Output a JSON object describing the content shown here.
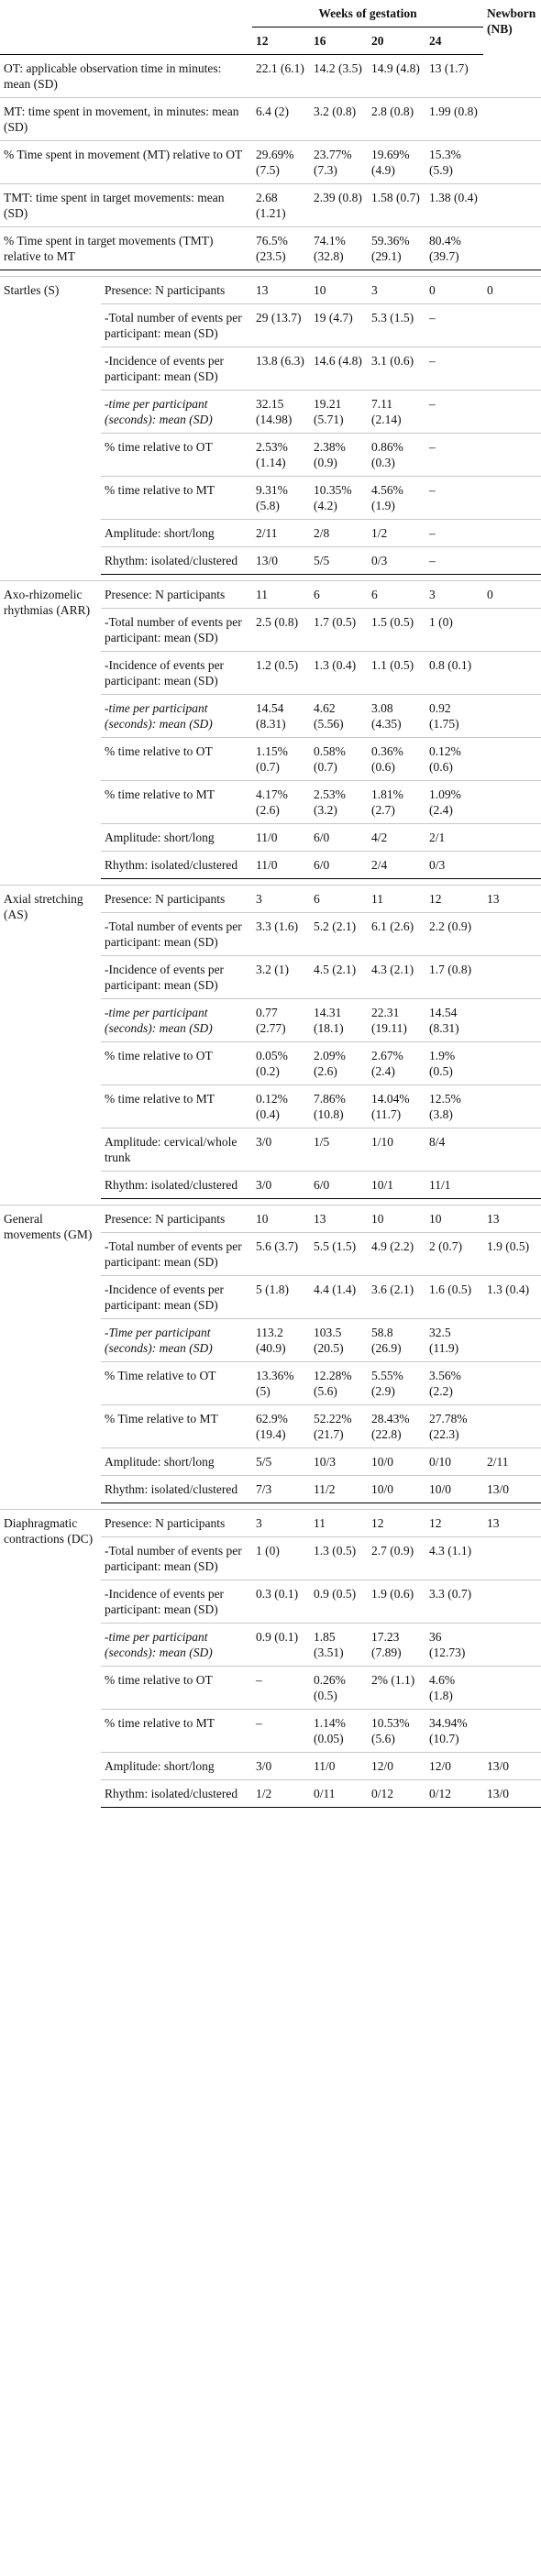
{
  "header": {
    "weeks_label": "Weeks of gestation",
    "newborn_label": "Newborn (NB)",
    "weeks": [
      "12",
      "16",
      "20",
      "24"
    ]
  },
  "summary_rows": [
    {
      "label": "OT: applicable observation time in minutes: mean (SD)",
      "values": [
        "22.1 (6.1)",
        "14.2 (3.5)",
        "14.9 (4.8)",
        "13 (1.7)"
      ],
      "nb": ""
    },
    {
      "label": "MT: time spent in movement, in minutes: mean (SD)",
      "values": [
        "6.4 (2)",
        "3.2 (0.8)",
        "2.8 (0.8)",
        "1.99 (0.8)"
      ],
      "nb": ""
    },
    {
      "label": "% Time spent in movement (MT) relative to OT",
      "values": [
        "29.69% (7.5)",
        "23.77% (7.3)",
        "19.69% (4.9)",
        "15.3% (5.9)"
      ],
      "nb": ""
    },
    {
      "label": "TMT: time spent in target movements: mean (SD)",
      "values": [
        "2.68 (1.21)",
        "2.39 (0.8)",
        "1.58 (0.7)",
        "1.38 (0.4)"
      ],
      "nb": ""
    },
    {
      "label": "% Time spent in target movements (TMT) relative to MT",
      "values": [
        "76.5% (23.5)",
        "74.1% (32.8)",
        "59.36% (29.1)",
        "80.4% (39.7)"
      ],
      "nb": ""
    }
  ],
  "groups": [
    {
      "name": "Startles (S)",
      "rows": [
        {
          "label": "Presence: N participants",
          "italic": false,
          "values": [
            "13",
            "10",
            "3",
            "0"
          ],
          "nb": "0"
        },
        {
          "label": "-Total number of events per participant: mean (SD)",
          "italic": false,
          "values": [
            "29 (13.7)",
            "19 (4.7)",
            "5.3 (1.5)",
            "–"
          ],
          "nb": ""
        },
        {
          "label": "-Incidence of events per participant: mean (SD)",
          "italic": false,
          "values": [
            "13.8 (6.3)",
            "14.6 (4.8)",
            "3.1 (0.6)",
            "–"
          ],
          "nb": ""
        },
        {
          "label": "-time per participant (seconds): mean (SD)",
          "italic": true,
          "values": [
            "32.15 (14.98)",
            "19.21 (5.71)",
            "7.11 (2.14)",
            "–"
          ],
          "nb": ""
        },
        {
          "label": "% time relative to OT",
          "italic": false,
          "values": [
            "2.53% (1.14)",
            "2.38% (0.9)",
            "0.86% (0.3)",
            "–"
          ],
          "nb": ""
        },
        {
          "label": "% time relative to MT",
          "italic": false,
          "values": [
            "9.31% (5.8)",
            "10.35% (4.2)",
            "4.56% (1.9)",
            "–"
          ],
          "nb": ""
        },
        {
          "label": "Amplitude: short/long",
          "italic": false,
          "values": [
            "2/11",
            "2/8",
            "1/2",
            "–"
          ],
          "nb": ""
        },
        {
          "label": "Rhythm: isolated/clustered",
          "italic": false,
          "values": [
            "13/0",
            "5/5",
            "0/3",
            "–"
          ],
          "nb": ""
        }
      ]
    },
    {
      "name": "Axo-rhizomelic rhythmias (ARR)",
      "rows": [
        {
          "label": "Presence: N participants",
          "italic": false,
          "values": [
            "11",
            "6",
            "6",
            "3"
          ],
          "nb": "0"
        },
        {
          "label": "-Total number of events per participant: mean (SD)",
          "italic": false,
          "values": [
            "2.5 (0.8)",
            "1.7 (0.5)",
            "1.5 (0.5)",
            "1 (0)"
          ],
          "nb": ""
        },
        {
          "label": "-Incidence of events per participant: mean (SD)",
          "italic": false,
          "values": [
            "1.2 (0.5)",
            "1.3 (0.4)",
            "1.1 (0.5)",
            "0.8 (0.1)"
          ],
          "nb": ""
        },
        {
          "label": "-time per participant (seconds): mean (SD)",
          "italic": true,
          "values": [
            "14.54 (8.31)",
            "4.62 (5.56)",
            "3.08 (4.35)",
            "0.92 (1.75)"
          ],
          "nb": ""
        },
        {
          "label": "% time relative to OT",
          "italic": false,
          "values": [
            "1.15% (0.7)",
            "0.58% (0.7)",
            "0.36% (0.6)",
            "0.12% (0.6)"
          ],
          "nb": ""
        },
        {
          "label": "% time relative to MT",
          "italic": false,
          "values": [
            "4.17% (2.6)",
            "2.53% (3.2)",
            "1.81% (2.7)",
            "1.09% (2.4)"
          ],
          "nb": ""
        },
        {
          "label": "Amplitude: short/long",
          "italic": false,
          "values": [
            "11/0",
            "6/0",
            "4/2",
            "2/1"
          ],
          "nb": ""
        },
        {
          "label": "Rhythm: isolated/clustered",
          "italic": false,
          "values": [
            "11/0",
            "6/0",
            "2/4",
            "0/3"
          ],
          "nb": ""
        }
      ]
    },
    {
      "name": "Axial stretching (AS)",
      "rows": [
        {
          "label": "Presence: N participants",
          "italic": false,
          "values": [
            "3",
            "6",
            "11",
            "12"
          ],
          "nb": "13"
        },
        {
          "label": "-Total number of events per participant: mean (SD)",
          "italic": false,
          "values": [
            "3.3 (1.6)",
            "5.2 (2.1)",
            "6.1 (2.6)",
            "2.2 (0.9)"
          ],
          "nb": ""
        },
        {
          "label": "-Incidence of events per participant: mean (SD)",
          "italic": false,
          "values": [
            "3.2 (1)",
            "4.5 (2.1)",
            "4.3 (2.1)",
            "1.7 (0.8)"
          ],
          "nb": ""
        },
        {
          "label": "-time per participant (seconds): mean (SD)",
          "italic": true,
          "values": [
            "0.77 (2.77)",
            "14.31 (18.1)",
            "22.31 (19.11)",
            "14.54 (8.31)"
          ],
          "nb": ""
        },
        {
          "label": "% time relative to OT",
          "italic": false,
          "values": [
            "0.05% (0.2)",
            "2.09% (2.6)",
            "2.67% (2.4)",
            "1.9% (0.5)"
          ],
          "nb": ""
        },
        {
          "label": "% time relative to MT",
          "italic": false,
          "values": [
            "0.12% (0.4)",
            "7.86% (10.8)",
            "14.04% (11.7)",
            "12.5% (3.8)"
          ],
          "nb": ""
        },
        {
          "label": "Amplitude: cervical/whole trunk",
          "italic": false,
          "values": [
            "3/0",
            "1/5",
            "1/10",
            "8/4"
          ],
          "nb": ""
        },
        {
          "label": "Rhythm: isolated/clustered",
          "italic": false,
          "values": [
            "3/0",
            "6/0",
            "10/1",
            "11/1"
          ],
          "nb": ""
        }
      ]
    },
    {
      "name": "General movements (GM)",
      "rows": [
        {
          "label": "Presence: N participants",
          "italic": false,
          "values": [
            "10",
            "13",
            "10",
            "10"
          ],
          "nb": "13"
        },
        {
          "label": "-Total number of events per participant: mean (SD)",
          "italic": false,
          "values": [
            "5.6 (3.7)",
            "5.5 (1.5)",
            "4.9 (2.2)",
            "2 (0.7)"
          ],
          "nb": "1.9 (0.5)"
        },
        {
          "label": "-Incidence of events per participant: mean (SD)",
          "italic": false,
          "values": [
            "5 (1.8)",
            "4.4 (1.4)",
            "3.6 (2.1)",
            "1.6 (0.5)"
          ],
          "nb": "1.3 (0.4)"
        },
        {
          "label": "-Time per participant (seconds): mean (SD)",
          "italic": true,
          "values": [
            "113.2 (40.9)",
            "103.5 (20.5)",
            "58.8 (26.9)",
            "32.5 (11.9)"
          ],
          "nb": ""
        },
        {
          "label": "% Time relative to OT",
          "italic": false,
          "values": [
            "13.36% (5)",
            "12.28% (5.6)",
            "5.55% (2.9)",
            "3.56% (2.2)"
          ],
          "nb": ""
        },
        {
          "label": "% Time relative to MT",
          "italic": false,
          "values": [
            "62.9% (19.4)",
            "52.22% (21.7)",
            "28.43% (22.8)",
            "27.78% (22.3)"
          ],
          "nb": ""
        },
        {
          "label": "Amplitude: short/long",
          "italic": false,
          "values": [
            "5/5",
            "10/3",
            "10/0",
            "0/10"
          ],
          "nb": "2/11"
        },
        {
          "label": "Rhythm: isolated/clustered",
          "italic": false,
          "values": [
            "7/3",
            "11/2",
            "10/0",
            "10/0"
          ],
          "nb": "13/0"
        }
      ]
    },
    {
      "name": "Diaphragmatic contractions (DC)",
      "rows": [
        {
          "label": "Presence: N participants",
          "italic": false,
          "values": [
            "3",
            "11",
            "12",
            "12"
          ],
          "nb": "13"
        },
        {
          "label": "-Total number of events per participant: mean (SD)",
          "italic": false,
          "values": [
            "1 (0)",
            "1.3 (0.5)",
            "2.7 (0.9)",
            "4.3 (1.1)"
          ],
          "nb": ""
        },
        {
          "label": "-Incidence of events per participant: mean (SD)",
          "italic": false,
          "values": [
            "0.3 (0.1)",
            "0.9 (0.5)",
            "1.9 (0.6)",
            "3.3 (0.7)"
          ],
          "nb": ""
        },
        {
          "label": "-time per participant (seconds): mean (SD)",
          "italic": true,
          "values": [
            "0.9 (0.1)",
            "1.85 (3.51)",
            "17.23 (7.89)",
            "36 (12.73)"
          ],
          "nb": ""
        },
        {
          "label": "% time relative to OT",
          "italic": false,
          "values": [
            "–",
            "0.26% (0.5)",
            "2% (1.1)",
            "4.6% (1.8)"
          ],
          "nb": ""
        },
        {
          "label": "% time relative to MT",
          "italic": false,
          "values": [
            "–",
            "1.14% (0.05)",
            "10.53% (5.6)",
            "34.94% (10.7)"
          ],
          "nb": ""
        },
        {
          "label": "Amplitude: short/long",
          "italic": false,
          "values": [
            "3/0",
            "11/0",
            "12/0",
            "12/0"
          ],
          "nb": "13/0"
        },
        {
          "label": "Rhythm: isolated/clustered",
          "italic": false,
          "values": [
            "1/2",
            "0/11",
            "0/12",
            "0/12"
          ],
          "nb": "13/0"
        }
      ]
    }
  ]
}
